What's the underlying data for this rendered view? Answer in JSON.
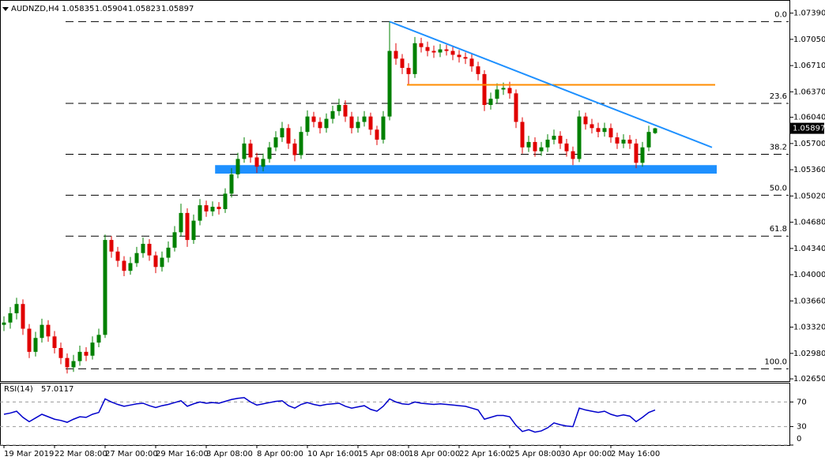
{
  "chart_data": {
    "type": "candlestick",
    "symbol": "AUDNZD,H4",
    "up_color": "#008000",
    "down_color": "#e00000",
    "categories": [
      "19 Mar 2019",
      null,
      null,
      null,
      null,
      null,
      null,
      null,
      "22 Mar 08:00",
      null,
      null,
      null,
      null,
      null,
      null,
      null,
      "27 Mar 00:00",
      null,
      null,
      null,
      null,
      null,
      null,
      null,
      "29 Mar 16:00",
      null,
      null,
      null,
      null,
      null,
      null,
      null,
      "3 Apr 08:00",
      null,
      null,
      null,
      null,
      null,
      null,
      null,
      "8 Apr 00:00",
      null,
      null,
      null,
      null,
      null,
      null,
      null,
      "10 Apr 16:00",
      null,
      null,
      null,
      null,
      null,
      null,
      null,
      "15 Apr 08:00",
      null,
      null,
      null,
      null,
      null,
      null,
      null,
      "18 Apr 00:00",
      null,
      null,
      null,
      null,
      null,
      null,
      null,
      "22 Apr 16:00",
      null,
      null,
      null,
      null,
      null,
      null,
      null,
      "25 Apr 08:00",
      null,
      null,
      null,
      null,
      null,
      null,
      null,
      "30 Apr 00:00",
      null,
      null,
      null,
      null,
      null,
      null,
      null,
      "2 May 16:00",
      null,
      null,
      null,
      null,
      null,
      null,
      null
    ],
    "open": [
      1.0335,
      1.0338,
      1.035,
      1.0362,
      1.033,
      1.03,
      1.0318,
      1.0335,
      1.032,
      1.0305,
      1.0292,
      1.028,
      1.0288,
      1.03,
      1.0295,
      1.0312,
      1.0322,
      1.0445,
      1.043,
      1.0418,
      1.0405,
      1.0415,
      1.0428,
      1.044,
      1.0425,
      1.041,
      1.0422,
      1.0435,
      1.0455,
      1.048,
      1.0445,
      1.047,
      1.049,
      1.0482,
      1.0488,
      1.0485,
      1.0505,
      1.053,
      1.055,
      1.057,
      1.0552,
      1.054,
      1.055,
      1.0565,
      1.0578,
      1.059,
      1.057,
      1.0555,
      1.0585,
      1.0605,
      1.0598,
      1.059,
      1.0602,
      1.0612,
      1.062,
      1.0605,
      1.059,
      1.0598,
      1.0605,
      1.0588,
      1.0575,
      1.0605,
      1.069,
      1.068,
      1.0668,
      1.066,
      1.07,
      1.0695,
      1.069,
      1.0688,
      1.0692,
      1.069,
      1.0685,
      1.0682,
      1.068,
      1.067,
      1.066,
      1.062,
      1.0628,
      1.064,
      1.0642,
      1.0635,
      1.0598,
      1.0565,
      1.0572,
      1.056,
      1.0565,
      1.0575,
      1.058,
      1.057,
      1.056,
      1.055,
      1.0605,
      1.0595,
      1.059,
      1.0585,
      1.059,
      1.0578,
      1.057,
      1.0575,
      1.057,
      1.0545,
      1.0565,
      1.05835
    ],
    "high": [
      1.0346,
      1.0358,
      1.037,
      1.0368,
      1.0336,
      1.0326,
      1.0343,
      1.0341,
      1.0327,
      1.0312,
      1.0298,
      1.0296,
      1.0308,
      1.0306,
      1.032,
      1.033,
      1.0452,
      1.045,
      1.0436,
      1.0424,
      1.0423,
      1.0436,
      1.0448,
      1.0446,
      1.043,
      1.043,
      1.0443,
      1.0463,
      1.0492,
      1.0486,
      1.0478,
      1.0498,
      1.0496,
      1.0495,
      1.0494,
      1.0512,
      1.0538,
      1.0558,
      1.0578,
      1.0575,
      1.0558,
      1.0557,
      1.0572,
      1.0586,
      1.0598,
      1.0595,
      1.0576,
      1.0592,
      1.0613,
      1.0611,
      1.0604,
      1.0609,
      1.0619,
      1.0628,
      1.0626,
      1.0611,
      1.0605,
      1.0612,
      1.061,
      1.0593,
      1.0612,
      1.0728,
      1.07,
      1.0686,
      1.0674,
      1.0708,
      1.0707,
      1.0702,
      1.0697,
      1.0699,
      1.0698,
      1.0696,
      1.0691,
      1.0688,
      1.0686,
      1.0676,
      1.0665,
      1.0636,
      1.0648,
      1.0649,
      1.065,
      1.064,
      1.0604,
      1.058,
      1.0578,
      1.0572,
      1.0582,
      1.0588,
      1.0586,
      1.0576,
      1.0566,
      1.0613,
      1.061,
      1.0602,
      1.0597,
      1.0597,
      1.0596,
      1.0584,
      1.0582,
      1.0581,
      1.0576,
      1.0572,
      1.0593,
      1.05904
    ],
    "low": [
      1.0327,
      1.033,
      1.0342,
      1.0322,
      1.0292,
      1.0294,
      1.0312,
      1.0313,
      1.0298,
      1.0284,
      1.0272,
      1.0274,
      1.0282,
      1.0288,
      1.029,
      1.0306,
      1.0318,
      1.0422,
      1.041,
      1.0398,
      1.04,
      1.041,
      1.0422,
      1.0418,
      1.0402,
      1.0404,
      1.0416,
      1.043,
      1.045,
      1.0436,
      1.044,
      1.0464,
      1.0475,
      1.0476,
      1.0478,
      1.048,
      1.05,
      1.0525,
      1.0545,
      1.0545,
      1.0532,
      1.0534,
      1.0545,
      1.056,
      1.0572,
      1.0563,
      1.0547,
      1.055,
      1.058,
      1.0591,
      1.0583,
      1.0584,
      1.0596,
      1.0606,
      1.0598,
      1.0583,
      1.0584,
      1.0592,
      1.0581,
      1.0568,
      1.057,
      1.06,
      1.0672,
      1.066,
      1.0645,
      1.0655,
      1.0688,
      1.0683,
      1.0681,
      1.0682,
      1.0684,
      1.0678,
      1.0675,
      1.0673,
      1.0663,
      1.0652,
      1.0612,
      1.0614,
      1.0622,
      1.0633,
      1.0628,
      1.059,
      1.0557,
      1.0559,
      1.0553,
      1.0554,
      1.0559,
      1.0569,
      1.0563,
      1.0553,
      1.0542,
      1.0546,
      1.0588,
      1.0583,
      1.0578,
      1.0579,
      1.0571,
      1.0563,
      1.0564,
      1.0563,
      1.0538,
      1.054,
      1.056,
      1.05823
    ],
    "close": [
      1.0338,
      1.035,
      1.0362,
      1.033,
      1.03,
      1.0318,
      1.0335,
      1.032,
      1.0305,
      1.0292,
      1.028,
      1.0288,
      1.03,
      1.0295,
      1.0312,
      1.0322,
      1.0445,
      1.043,
      1.0418,
      1.0405,
      1.0415,
      1.0428,
      1.044,
      1.0425,
      1.041,
      1.0422,
      1.0435,
      1.0455,
      1.048,
      1.0445,
      1.047,
      1.049,
      1.0482,
      1.0488,
      1.0485,
      1.0505,
      1.053,
      1.055,
      1.057,
      1.0552,
      1.054,
      1.055,
      1.0565,
      1.0578,
      1.059,
      1.057,
      1.0555,
      1.0585,
      1.0605,
      1.0598,
      1.059,
      1.0602,
      1.0612,
      1.062,
      1.0605,
      1.059,
      1.0598,
      1.0605,
      1.0588,
      1.0575,
      1.0605,
      1.069,
      1.068,
      1.0668,
      1.066,
      1.07,
      1.0695,
      1.069,
      1.0688,
      1.0692,
      1.069,
      1.0685,
      1.0682,
      1.068,
      1.067,
      1.066,
      1.062,
      1.0628,
      1.064,
      1.0642,
      1.0635,
      1.0598,
      1.0565,
      1.0572,
      1.056,
      1.0565,
      1.0575,
      1.058,
      1.057,
      1.056,
      1.055,
      1.0605,
      1.0595,
      1.059,
      1.0585,
      1.059,
      1.0578,
      1.057,
      1.0575,
      1.057,
      1.0545,
      1.0565,
      1.0585,
      1.05897
    ],
    "ylim": [
      1.0261,
      1.0756
    ],
    "yticks": [
      {
        "value": 1.0739,
        "label": "1.07390"
      },
      {
        "value": 1.0705,
        "label": "1.07050"
      },
      {
        "value": 1.0671,
        "label": "1.06710"
      },
      {
        "value": 1.0637,
        "label": "1.06370"
      },
      {
        "value": 1.0604,
        "label": "1.06040"
      },
      {
        "value": 1.057,
        "label": "1.05700"
      },
      {
        "value": 1.0536,
        "label": "1.05360"
      },
      {
        "value": 1.0502,
        "label": "1.05020"
      },
      {
        "value": 1.0468,
        "label": "1.04680"
      },
      {
        "value": 1.0434,
        "label": "1.04340"
      },
      {
        "value": 1.04,
        "label": "1.04000"
      },
      {
        "value": 1.0366,
        "label": "1.03660"
      },
      {
        "value": 1.0332,
        "label": "1.03320"
      },
      {
        "value": 1.0298,
        "label": "1.02980"
      },
      {
        "value": 1.0265,
        "label": "1.02650"
      }
    ],
    "fib_levels": [
      {
        "value": 1.0728,
        "label": "0.0"
      },
      {
        "value": 1.0622,
        "label": "23.6"
      },
      {
        "value": 1.0556,
        "label": "38.2"
      },
      {
        "value": 1.0503,
        "label": "50.0"
      },
      {
        "value": 1.045,
        "label": "61.8"
      },
      {
        "value": 1.0278,
        "label": "100.0"
      }
    ],
    "trendline": {
      "x": [
        61,
        112
      ],
      "y": [
        1.0728,
        1.0565
      ],
      "color": "#1e90ff"
    },
    "resistance": {
      "x": [
        63.75,
        112.5
      ],
      "y": [
        1.0646,
        1.0646
      ],
      "color": "#ff8c00"
    },
    "support_zone": {
      "x": [
        33.4,
        112.75
      ],
      "y": [
        1.0531,
        1.0542
      ],
      "color": "#1e90ff"
    },
    "indicator": {
      "type": "line",
      "name": "RSI(14)",
      "color": "#0000cc",
      "ylim": [
        0,
        100
      ],
      "yticks": [
        0,
        30,
        70
      ],
      "grid": true,
      "values": [
        50,
        52,
        55,
        45,
        38,
        44,
        50,
        46,
        42,
        40,
        37,
        42,
        46,
        45,
        50,
        53,
        75,
        70,
        66,
        63,
        65,
        67,
        68,
        64,
        61,
        64,
        66,
        69,
        72,
        63,
        67,
        70,
        68,
        69,
        68,
        71,
        74,
        76,
        77,
        70,
        65,
        67,
        69,
        71,
        72,
        64,
        60,
        66,
        69,
        66,
        64,
        66,
        67,
        68,
        63,
        60,
        62,
        64,
        58,
        55,
        63,
        75,
        70,
        67,
        66,
        70,
        68,
        67,
        66,
        67,
        66,
        65,
        64,
        63,
        60,
        57,
        42,
        45,
        48,
        48,
        46,
        32,
        22,
        25,
        21,
        23,
        28,
        36,
        33,
        31,
        30,
        60,
        57,
        55,
        53,
        55,
        50,
        47,
        49,
        47,
        38,
        45,
        53,
        57.0117
      ]
    }
  }
}
